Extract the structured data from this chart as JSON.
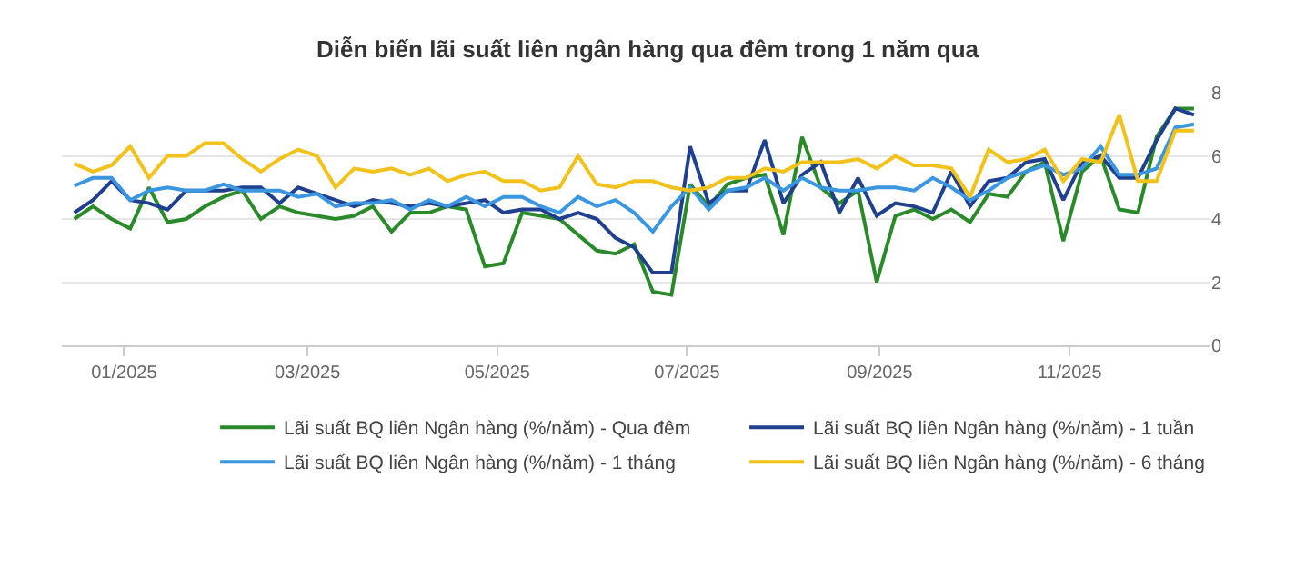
{
  "chart_data": {
    "type": "line",
    "title": "Diễn biến lãi suất liên ngân hàng qua đêm trong 1 năm qua",
    "x": [
      "2024-12-16",
      "2024-12-22",
      "2024-12-28",
      "2025-01-03",
      "2025-01-09",
      "2025-01-15",
      "2025-01-21",
      "2025-01-27",
      "2025-02-02",
      "2025-02-08",
      "2025-02-14",
      "2025-02-20",
      "2025-02-26",
      "2025-03-04",
      "2025-03-10",
      "2025-03-16",
      "2025-03-22",
      "2025-03-28",
      "2025-04-03",
      "2025-04-09",
      "2025-04-15",
      "2025-04-21",
      "2025-04-27",
      "2025-05-03",
      "2025-05-09",
      "2025-05-15",
      "2025-05-21",
      "2025-05-27",
      "2025-06-02",
      "2025-06-08",
      "2025-06-14",
      "2025-06-20",
      "2025-06-26",
      "2025-07-02",
      "2025-07-08",
      "2025-07-14",
      "2025-07-20",
      "2025-07-26",
      "2025-08-01",
      "2025-08-07",
      "2025-08-13",
      "2025-08-19",
      "2025-08-25",
      "2025-08-31",
      "2025-09-06",
      "2025-09-12",
      "2025-09-18",
      "2025-09-24",
      "2025-09-30",
      "2025-10-06",
      "2025-10-12",
      "2025-10-18",
      "2025-10-24",
      "2025-10-30",
      "2025-11-05",
      "2025-11-11",
      "2025-11-17",
      "2025-11-23",
      "2025-11-29",
      "2025-12-05",
      "2025-12-11"
    ],
    "series": [
      {
        "name": "Lãi suất BQ liên Ngân hàng (%/năm) - Qua đêm",
        "color": "#2a8a2a",
        "values": [
          4.0,
          4.4,
          4.0,
          3.7,
          5.0,
          3.9,
          4.0,
          4.4,
          4.7,
          4.9,
          4.0,
          4.4,
          4.2,
          4.1,
          4.0,
          4.1,
          4.4,
          3.6,
          4.2,
          4.2,
          4.4,
          4.3,
          2.5,
          2.6,
          4.2,
          4.1,
          4.0,
          3.5,
          3.0,
          2.9,
          3.2,
          1.7,
          1.6,
          5.1,
          4.4,
          5.1,
          5.3,
          5.4,
          3.5,
          6.6,
          5.0,
          4.5,
          4.9,
          2.0,
          4.1,
          4.3,
          4.0,
          4.3,
          3.9,
          4.8,
          4.7,
          5.5,
          5.8,
          3.3,
          5.5,
          6.0,
          4.3,
          4.2,
          6.6,
          7.5,
          7.5
        ]
      },
      {
        "name": "Lãi suất BQ liên Ngân hàng (%/năm) - 1 tuần",
        "color": "#1f3f8f",
        "values": [
          4.2,
          4.6,
          5.2,
          4.6,
          4.5,
          4.3,
          4.9,
          4.9,
          4.9,
          5.0,
          5.0,
          4.5,
          5.0,
          4.8,
          4.6,
          4.4,
          4.6,
          4.5,
          4.4,
          4.5,
          4.4,
          4.5,
          4.6,
          4.2,
          4.3,
          4.3,
          4.0,
          4.2,
          4.0,
          3.4,
          3.1,
          2.3,
          2.3,
          6.3,
          4.5,
          4.9,
          4.9,
          6.5,
          4.5,
          5.4,
          5.8,
          4.2,
          5.3,
          4.1,
          4.5,
          4.4,
          4.2,
          5.5,
          4.4,
          5.2,
          5.3,
          5.8,
          5.9,
          4.6,
          5.8,
          6.0,
          5.3,
          5.3,
          6.5,
          7.5,
          7.3
        ]
      },
      {
        "name": "Lãi suất BQ liên Ngân hàng (%/năm) - 1 tháng",
        "color": "#3a96e0",
        "values": [
          5.05,
          5.3,
          5.3,
          4.6,
          4.9,
          5.0,
          4.9,
          4.9,
          5.1,
          4.9,
          4.9,
          4.9,
          4.7,
          4.8,
          4.4,
          4.5,
          4.5,
          4.6,
          4.3,
          4.6,
          4.4,
          4.7,
          4.4,
          4.7,
          4.7,
          4.4,
          4.2,
          4.7,
          4.4,
          4.6,
          4.2,
          3.6,
          4.4,
          5.0,
          4.3,
          4.9,
          5.0,
          5.3,
          4.9,
          5.3,
          5.0,
          4.9,
          4.9,
          5.0,
          5.0,
          4.9,
          5.3,
          5.0,
          4.6,
          4.9,
          5.3,
          5.5,
          5.7,
          5.4,
          5.6,
          6.3,
          5.4,
          5.4,
          5.6,
          6.9,
          7.0
        ]
      },
      {
        "name": "Lãi suất BQ liên Ngân hàng (%/năm) - 6 tháng",
        "color": "#f2c21b",
        "values": [
          5.75,
          5.5,
          5.7,
          6.3,
          5.3,
          6.0,
          6.0,
          6.4,
          6.4,
          5.9,
          5.5,
          5.9,
          6.2,
          6.0,
          5.0,
          5.6,
          5.5,
          5.6,
          5.4,
          5.6,
          5.2,
          5.4,
          5.5,
          5.2,
          5.2,
          4.9,
          5.0,
          6.0,
          5.1,
          5.0,
          5.2,
          5.2,
          5.0,
          4.9,
          5.0,
          5.3,
          5.3,
          5.6,
          5.5,
          5.8,
          5.8,
          5.8,
          5.9,
          5.6,
          6.0,
          5.7,
          5.7,
          5.6,
          4.7,
          6.2,
          5.8,
          5.9,
          6.2,
          5.2,
          5.9,
          5.8,
          7.3,
          5.2,
          5.2,
          6.8,
          6.8
        ]
      }
    ],
    "xlim": [
      "2024-12-12",
      "2025-12-16"
    ],
    "xticks": [
      {
        "value": "2025-01-01",
        "label": "01/2025"
      },
      {
        "value": "2025-03-01",
        "label": "03/2025"
      },
      {
        "value": "2025-05-01",
        "label": "05/2025"
      },
      {
        "value": "2025-07-01",
        "label": "07/2025"
      },
      {
        "value": "2025-09-01",
        "label": "09/2025"
      },
      {
        "value": "2025-11-01",
        "label": "11/2025"
      }
    ],
    "ylim": [
      0,
      8
    ],
    "yticks": [
      0,
      2,
      4,
      6,
      8
    ],
    "grid": "y",
    "legend": "bottom",
    "marker": "none",
    "line_style": "solid"
  }
}
